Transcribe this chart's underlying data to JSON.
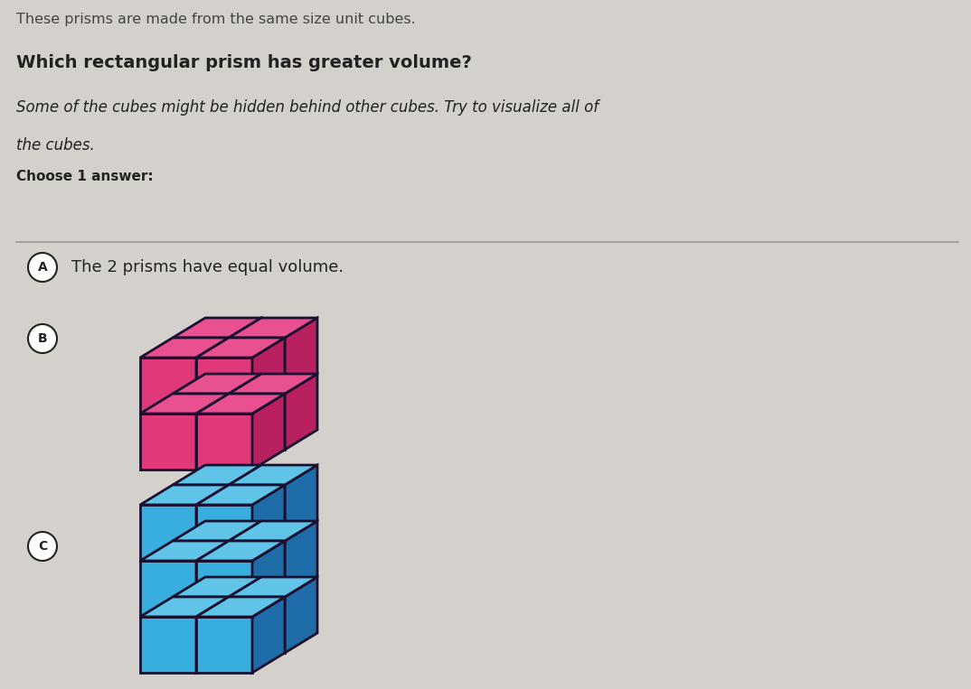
{
  "background_color": "#d4d0cc",
  "title_line1": "Which rectangular prism has greater volume?",
  "subtitle_line1": "Some of the cubes might be hidden behind other cubes. Try to visualize all of",
  "subtitle_line2": "the cubes.",
  "choose_text": "Choose 1 answer:",
  "header_text": "These prisms are made from the same size unit cubes.",
  "option_A_text": "The 2 prisms have equal volume.",
  "option_A_circle": "A",
  "option_B_circle": "B",
  "option_C_circle": "C",
  "pink_color_face": "#e03878",
  "pink_color_dark": "#b82060",
  "pink_color_top": "#e85090",
  "blue_color_face": "#38aede",
  "blue_color_dark": "#1e6ca8",
  "blue_color_top": "#60c4e8",
  "outline_color": "#1a1030",
  "divider_color": "#999999",
  "text_color": "#222222",
  "circle_bg": "#ffffff"
}
